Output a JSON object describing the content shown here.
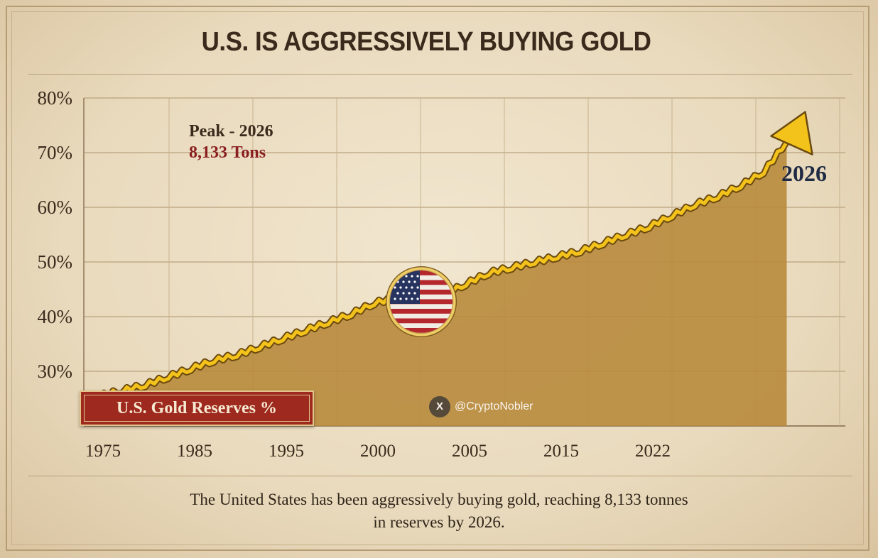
{
  "title": "U.S. IS AGGRESSIVELY BUYING GOLD",
  "caption": {
    "line1": "The United States has been aggressively buying gold, reaching 8,133 tonnes",
    "line2": "in reserves by 2026."
  },
  "watermark": "@CryptoNobler",
  "colors": {
    "line": "#f3c21b",
    "line_shadow": "#6b4a10",
    "area": "#b88a3c",
    "arrow": "#f3c21b",
    "label_red": "#8a1f1f",
    "label_navy": "#1f2a44"
  },
  "chart_data": {
    "type": "area",
    "title": "U.S. IS AGGRESSIVELY BUYING GOLD",
    "xlabel": "",
    "ylabel": "",
    "y_ticks": [
      "30%",
      "40%",
      "50%",
      "60%",
      "70%",
      "80%"
    ],
    "ylim": [
      20,
      80
    ],
    "x_ticks": [
      "1975",
      "1985",
      "1995",
      "2000",
      "2005",
      "2015",
      "2022"
    ],
    "grid": true,
    "annotations": [
      {
        "text": "Peak - 2026",
        "type": "peak_year"
      },
      {
        "text": "8,133 Tons",
        "type": "peak_value"
      },
      {
        "text": "2026",
        "type": "end_label"
      }
    ],
    "series": [
      {
        "name": "U.S. Gold Reserves %",
        "x_index": [
          0,
          0.25,
          0.5,
          0.75,
          1,
          1.25,
          1.5,
          1.75,
          2,
          2.25,
          2.5,
          2.75,
          3,
          3.25,
          3.5,
          3.75,
          4,
          4.25,
          4.5,
          4.75,
          5,
          5.25,
          5.5,
          5.75,
          6,
          6.25,
          6.5,
          6.75,
          7,
          7.25,
          7.5
        ],
        "values": [
          25.5,
          26.5,
          27.5,
          29,
          30.5,
          32,
          33,
          34.5,
          36,
          37.5,
          39,
          40.5,
          42.5,
          43.5,
          44,
          44,
          46,
          48,
          49,
          50,
          51,
          52,
          53.5,
          55,
          56.5,
          58.5,
          60.5,
          62,
          64,
          66.5,
          72
        ]
      }
    ]
  }
}
